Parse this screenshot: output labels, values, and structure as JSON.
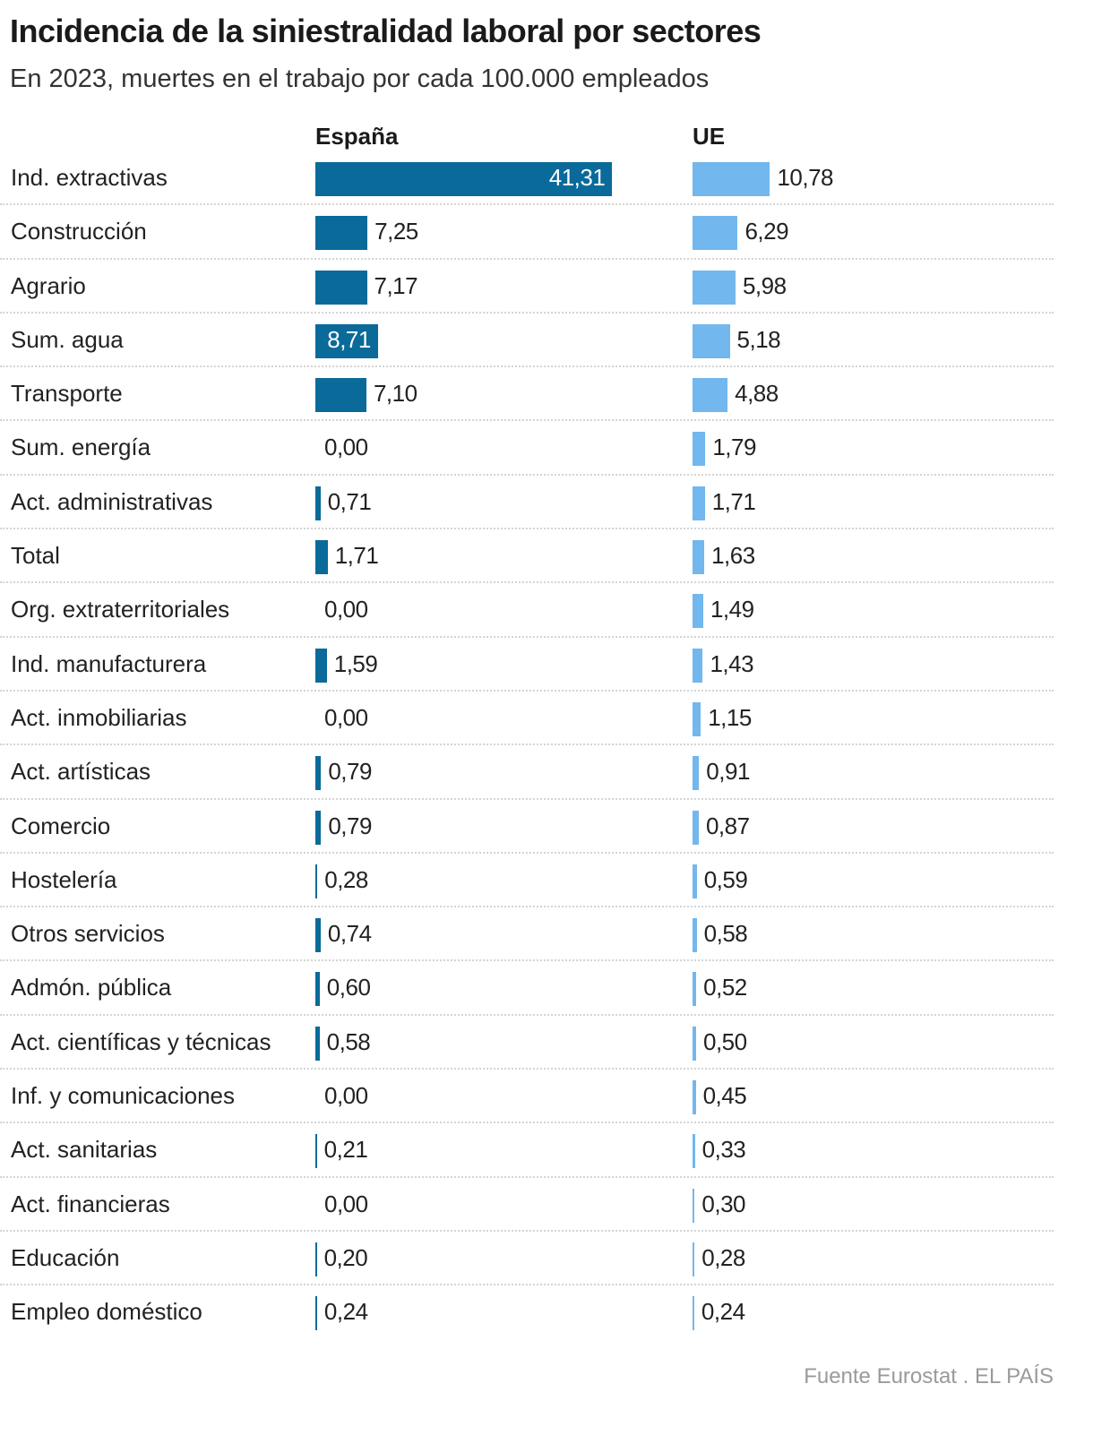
{
  "title": "Incidencia de la siniestralidad laboral por sectores",
  "subtitle": "En 2023, muertes en el trabajo por cada 100.000 empleados",
  "footer": "Fuente Eurostat . EL PAÍS",
  "colors": {
    "espana": "#0a6a9a",
    "ue": "#72b7ee"
  },
  "chart_data": {
    "type": "bar",
    "orientation": "horizontal",
    "title": "Incidencia de la siniestralidad laboral por sectores",
    "subtitle": "En 2023, muertes en el trabajo por cada 100.000 empleados",
    "categories": [
      "Ind. extractivas",
      "Construcción",
      "Agrario",
      "Sum. agua",
      "Transporte",
      "Sum. energía",
      "Act. administrativas",
      "Total",
      "Org. extraterritoriales",
      "Ind. manufacturera",
      "Act. inmobiliarias",
      "Act. artísticas",
      "Comercio",
      "Hostelería",
      "Otros servicios",
      "Admón. pública",
      "Act. científicas y técnicas",
      "Inf. y comunicaciones",
      "Act. sanitarias",
      "Act. financieras",
      "Educación",
      "Empleo doméstico"
    ],
    "series": [
      {
        "name": "España",
        "values": [
          41.31,
          7.25,
          7.17,
          8.71,
          7.1,
          0.0,
          0.71,
          1.71,
          0.0,
          1.59,
          0.0,
          0.79,
          0.79,
          0.28,
          0.74,
          0.6,
          0.58,
          0.0,
          0.21,
          0.0,
          0.2,
          0.24
        ],
        "labels": [
          "41,31",
          "7,25",
          "7,17",
          "8,71",
          "7,10",
          "0,00",
          "0,71",
          "1,71",
          "0,00",
          "1,59",
          "0,00",
          "0,79",
          "0,79",
          "0,28",
          "0,74",
          "0,60",
          "0,58",
          "0,00",
          "0,21",
          "0,00",
          "0,20",
          "0,24"
        ]
      },
      {
        "name": "UE",
        "values": [
          10.78,
          6.29,
          5.98,
          5.18,
          4.88,
          1.79,
          1.71,
          1.63,
          1.49,
          1.43,
          1.15,
          0.91,
          0.87,
          0.59,
          0.58,
          0.52,
          0.5,
          0.45,
          0.33,
          0.3,
          0.28,
          0.24
        ],
        "labels": [
          "10,78",
          "6,29",
          "5,98",
          "5,18",
          "4,88",
          "1,79",
          "1,71",
          "1,63",
          "1,49",
          "1,43",
          "1,15",
          "0,91",
          "0,87",
          "0,59",
          "0,58",
          "0,52",
          "0,50",
          "0,45",
          "0,33",
          "0,30",
          "0,28",
          "0,24"
        ]
      }
    ],
    "xlabel": "",
    "ylabel": ""
  }
}
